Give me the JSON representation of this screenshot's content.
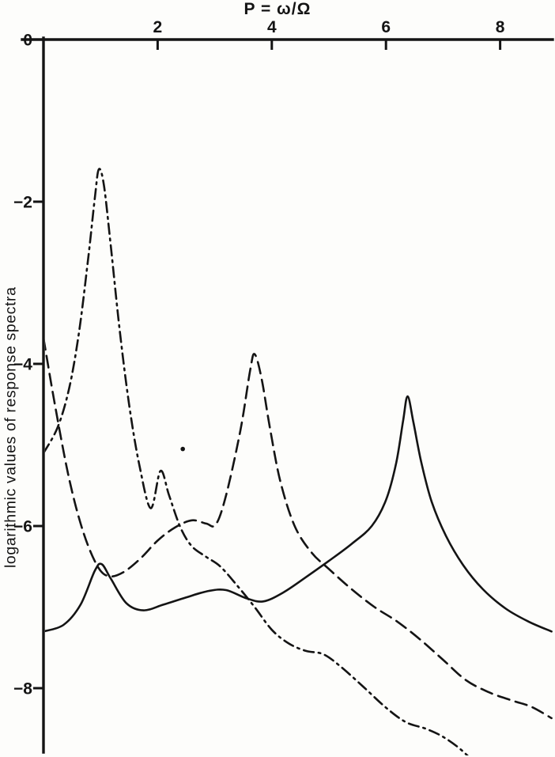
{
  "figure": {
    "background": "#fdfdfb",
    "ink": "#141414"
  },
  "chart_data": {
    "type": "line",
    "title": "",
    "x_axis": {
      "label": "P = ω/Ω",
      "position": "top",
      "ticks": [
        2,
        4,
        6,
        8
      ],
      "range": [
        0,
        8.9
      ]
    },
    "y_axis": {
      "label": "logarithmic values of response spectra",
      "ticks": [
        0,
        -2,
        -4,
        -6,
        -8
      ],
      "range": [
        -8.85,
        0
      ]
    },
    "grid": false,
    "legend": "none",
    "series": [
      {
        "name": "solid-curve",
        "style": "solid",
        "points": [
          [
            0,
            -7.3
          ],
          [
            0.35,
            -7.22
          ],
          [
            0.65,
            -6.97
          ],
          [
            0.9,
            -6.55
          ],
          [
            1.02,
            -6.47
          ],
          [
            1.18,
            -6.65
          ],
          [
            1.45,
            -6.95
          ],
          [
            1.75,
            -7.04
          ],
          [
            2.1,
            -6.97
          ],
          [
            2.5,
            -6.88
          ],
          [
            2.9,
            -6.8
          ],
          [
            3.2,
            -6.79
          ],
          [
            3.55,
            -6.89
          ],
          [
            3.85,
            -6.93
          ],
          [
            4.2,
            -6.82
          ],
          [
            4.6,
            -6.63
          ],
          [
            5.0,
            -6.43
          ],
          [
            5.4,
            -6.22
          ],
          [
            5.75,
            -6.0
          ],
          [
            6.0,
            -5.68
          ],
          [
            6.18,
            -5.22
          ],
          [
            6.3,
            -4.7
          ],
          [
            6.38,
            -4.4
          ],
          [
            6.48,
            -4.72
          ],
          [
            6.62,
            -5.22
          ],
          [
            6.8,
            -5.7
          ],
          [
            7.05,
            -6.12
          ],
          [
            7.35,
            -6.48
          ],
          [
            7.7,
            -6.78
          ],
          [
            8.1,
            -7.02
          ],
          [
            8.5,
            -7.18
          ],
          [
            8.9,
            -7.3
          ]
        ]
      },
      {
        "name": "dashed-curve",
        "style": "dashed",
        "points": [
          [
            0,
            -3.68
          ],
          [
            0.2,
            -4.5
          ],
          [
            0.45,
            -5.42
          ],
          [
            0.7,
            -6.08
          ],
          [
            0.95,
            -6.5
          ],
          [
            1.15,
            -6.62
          ],
          [
            1.4,
            -6.57
          ],
          [
            1.7,
            -6.4
          ],
          [
            2.0,
            -6.18
          ],
          [
            2.3,
            -6.02
          ],
          [
            2.6,
            -5.93
          ],
          [
            2.85,
            -5.97
          ],
          [
            3.02,
            -5.98
          ],
          [
            3.2,
            -5.62
          ],
          [
            3.45,
            -4.82
          ],
          [
            3.62,
            -4.08
          ],
          [
            3.7,
            -3.88
          ],
          [
            3.82,
            -4.18
          ],
          [
            3.97,
            -4.8
          ],
          [
            4.15,
            -5.45
          ],
          [
            4.4,
            -6.0
          ],
          [
            4.7,
            -6.33
          ],
          [
            5.0,
            -6.53
          ],
          [
            5.4,
            -6.78
          ],
          [
            5.8,
            -7.0
          ],
          [
            6.2,
            -7.18
          ],
          [
            6.6,
            -7.4
          ],
          [
            7.0,
            -7.65
          ],
          [
            7.4,
            -7.9
          ],
          [
            7.8,
            -8.05
          ],
          [
            8.2,
            -8.15
          ],
          [
            8.55,
            -8.23
          ],
          [
            8.9,
            -8.37
          ]
        ]
      },
      {
        "name": "dashdot-curve",
        "style": "dashdot",
        "points": [
          [
            0,
            -5.1
          ],
          [
            0.25,
            -4.78
          ],
          [
            0.45,
            -4.3
          ],
          [
            0.62,
            -3.62
          ],
          [
            0.78,
            -2.72
          ],
          [
            0.9,
            -1.95
          ],
          [
            0.97,
            -1.6
          ],
          [
            1.06,
            -1.8
          ],
          [
            1.18,
            -2.55
          ],
          [
            1.33,
            -3.55
          ],
          [
            1.5,
            -4.5
          ],
          [
            1.68,
            -5.25
          ],
          [
            1.88,
            -5.78
          ],
          [
            2.05,
            -5.32
          ],
          [
            2.2,
            -5.62
          ],
          [
            2.4,
            -6.02
          ],
          [
            2.6,
            -6.25
          ],
          [
            2.85,
            -6.38
          ],
          [
            3.1,
            -6.5
          ],
          [
            3.4,
            -6.74
          ],
          [
            3.7,
            -7.0
          ],
          [
            4.0,
            -7.28
          ],
          [
            4.3,
            -7.45
          ],
          [
            4.6,
            -7.54
          ],
          [
            4.9,
            -7.58
          ],
          [
            5.2,
            -7.73
          ],
          [
            5.6,
            -7.98
          ],
          [
            6.0,
            -8.24
          ],
          [
            6.35,
            -8.42
          ],
          [
            6.7,
            -8.5
          ],
          [
            7.0,
            -8.6
          ],
          [
            7.3,
            -8.75
          ],
          [
            7.6,
            -8.95
          ]
        ]
      }
    ],
    "annotations": [
      {
        "type": "dot",
        "x": 2.44,
        "y": -5.05
      }
    ]
  }
}
